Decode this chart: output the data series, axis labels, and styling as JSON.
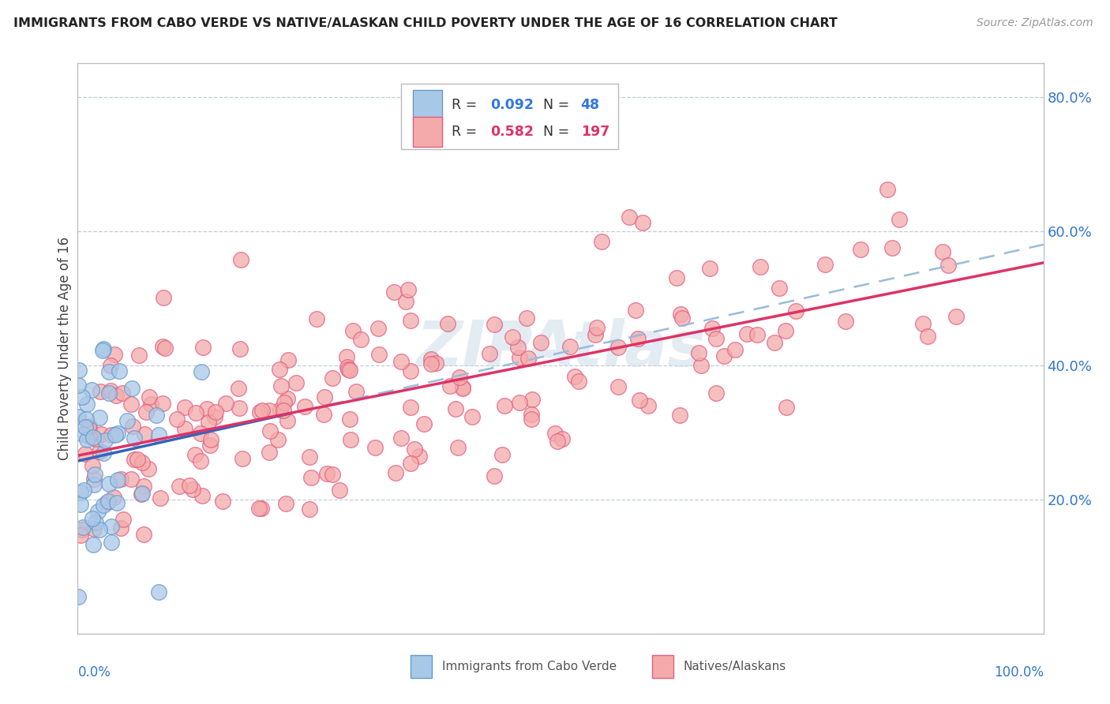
{
  "title": "IMMIGRANTS FROM CABO VERDE VS NATIVE/ALASKAN CHILD POVERTY UNDER THE AGE OF 16 CORRELATION CHART",
  "source": "Source: ZipAtlas.com",
  "ylabel": "Child Poverty Under the Age of 16",
  "ylim": [
    0,
    0.85
  ],
  "xlim": [
    0,
    1.0
  ],
  "ytick_vals": [
    0.0,
    0.2,
    0.4,
    0.6,
    0.8
  ],
  "ytick_labels_right": [
    "",
    "20.0%",
    "40.0%",
    "60.0%",
    "80.0%"
  ],
  "legend1_R": "0.092",
  "legend1_N": "48",
  "legend2_R": "0.582",
  "legend2_N": "197",
  "cabo_face": "#a8c8e8",
  "cabo_edge": "#6699cc",
  "native_face": "#f4aaaa",
  "native_edge": "#e06080",
  "line_cabo_color": "#3366bb",
  "line_native_color": "#dd3366",
  "line_dash_color": "#99bbdd",
  "watermark": "ZIPAtlas",
  "bottom_legend_label1": "Immigrants from Cabo Verde",
  "bottom_legend_label2": "Natives/Alaskans"
}
